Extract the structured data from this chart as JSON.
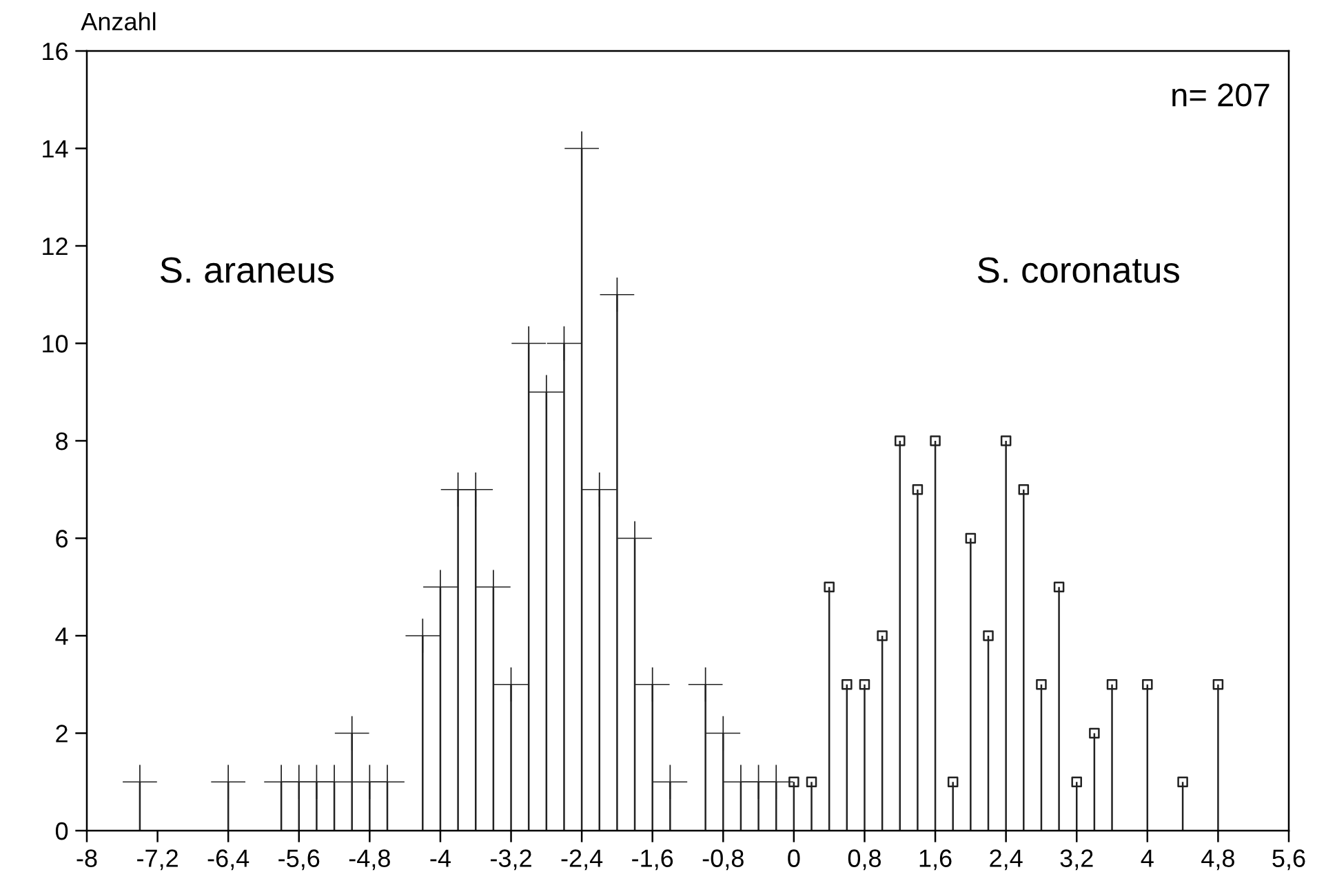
{
  "chart_data": {
    "type": "lollipop",
    "ylabel": "Anzahl",
    "annotations": [
      "n= 207",
      "S. araneus",
      "S. coronatus"
    ],
    "xlim": [
      -8,
      5.6
    ],
    "ylim": [
      0,
      16
    ],
    "xticks": [
      {
        "value": -8,
        "label": "-8"
      },
      {
        "value": -7.2,
        "label": "-7,2"
      },
      {
        "value": -6.4,
        "label": "-6,4"
      },
      {
        "value": -5.6,
        "label": "-5,6"
      },
      {
        "value": -4.8,
        "label": "-4,8"
      },
      {
        "value": -4,
        "label": "-4"
      },
      {
        "value": -3.2,
        "label": "-3,2"
      },
      {
        "value": -2.4,
        "label": "-2,4"
      },
      {
        "value": -1.6,
        "label": "-1,6"
      },
      {
        "value": -0.8,
        "label": "-0,8"
      },
      {
        "value": 0,
        "label": "0"
      },
      {
        "value": 0.8,
        "label": "0,8"
      },
      {
        "value": 1.6,
        "label": "1,6"
      },
      {
        "value": 2.4,
        "label": "2,4"
      },
      {
        "value": 3.2,
        "label": "3,2"
      },
      {
        "value": 4,
        "label": "4"
      },
      {
        "value": 4.8,
        "label": "4,8"
      },
      {
        "value": 5.6,
        "label": "5,6"
      }
    ],
    "yticks": [
      0,
      2,
      4,
      6,
      8,
      10,
      12,
      14,
      16
    ],
    "series": [
      {
        "color": "#222222",
        "marker": "cross",
        "x": [
          -7.4,
          -6.4,
          -5.8,
          -5.6,
          -5.4,
          -5.2,
          -5.0,
          -4.8,
          -4.6,
          -4.2,
          -4.0,
          -3.8,
          -3.6,
          -3.4,
          -3.2,
          -3.0,
          -2.8,
          -2.6,
          -2.4,
          -2.2,
          -2.0,
          -1.8,
          -1.6,
          -1.4,
          -1.0,
          -0.8,
          -0.6,
          -0.4,
          -0.2
        ],
        "values": [
          1,
          1,
          1,
          1,
          1,
          1,
          2,
          1,
          1,
          4,
          5,
          7,
          7,
          5,
          3,
          10,
          9,
          10,
          14,
          7,
          11,
          6,
          3,
          1,
          3,
          2,
          1,
          1,
          1
        ]
      },
      {
        "color": "#222222",
        "marker": "square",
        "x": [
          0,
          0.2,
          0.4,
          0.6,
          0.8,
          1.0,
          1.2,
          1.4,
          1.6,
          1.8,
          2.0,
          2.2,
          2.4,
          2.6,
          2.8,
          3.0,
          3.2,
          3.4,
          3.6,
          4.0,
          4.4,
          4.8
        ],
        "values": [
          1,
          1,
          5,
          3,
          3,
          4,
          8,
          7,
          8,
          1,
          6,
          4,
          8,
          7,
          3,
          5,
          1,
          2,
          3,
          3,
          1,
          3
        ]
      }
    ]
  }
}
